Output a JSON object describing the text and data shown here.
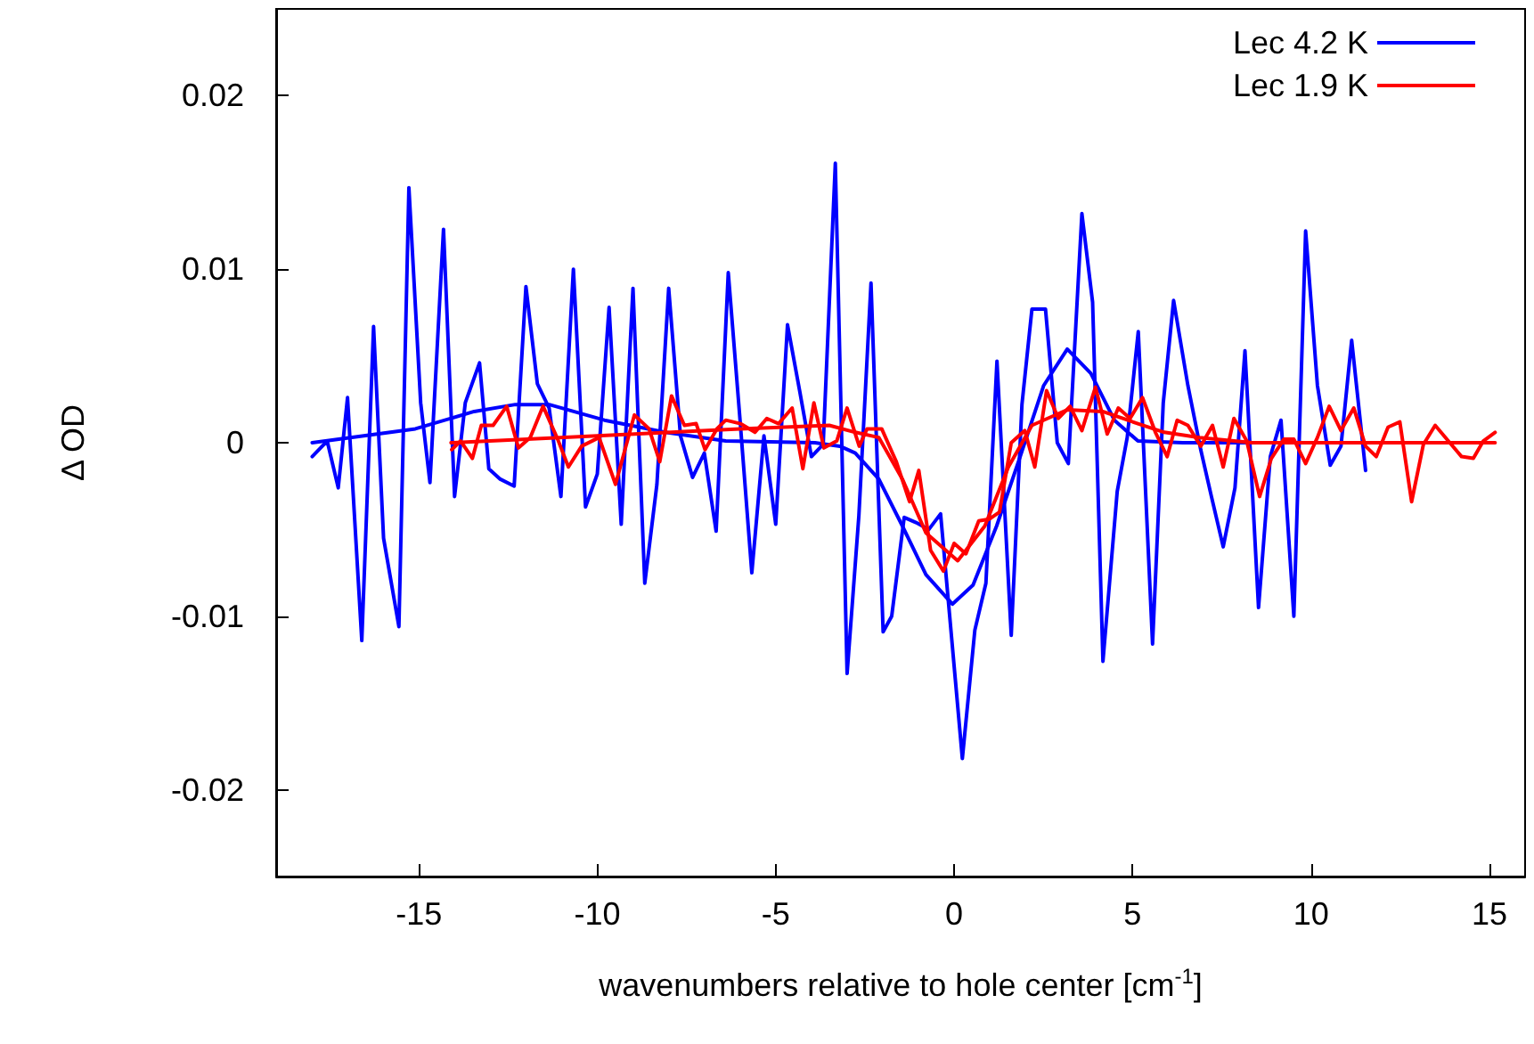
{
  "chart_data": {
    "type": "line",
    "xlabel": "wavenumbers relative to hole center [cm$^{-1}$]",
    "ylabel": "Δ OD",
    "xlim": [
      -19,
      16
    ],
    "ylim": [
      -0.025,
      0.025
    ],
    "xticks": [
      -15,
      -10,
      -5,
      0,
      5,
      10,
      15
    ],
    "yticks": [
      -0.02,
      -0.01,
      0,
      0.01,
      0.02
    ],
    "legend": "top right",
    "grid": false,
    "marker": "none",
    "line_style": "solid",
    "series": [
      {
        "name": "Lec 4.2 K",
        "color": "#0000ff",
        "x": [
          -17.99,
          -17.57,
          -17.26,
          -17.0,
          -16.6,
          -16.27,
          -15.99,
          -15.56,
          -15.28,
          -14.95,
          -14.69,
          -14.31,
          -14.0,
          -13.7,
          -13.3,
          -13.04,
          -12.72,
          -12.33,
          -12.0,
          -11.68,
          -11.35,
          -11.02,
          -10.67,
          -10.33,
          -10.0,
          -9.67,
          -9.33,
          -9.0,
          -8.67,
          -8.33,
          -8.0,
          -7.67,
          -7.33,
          -7.0,
          -6.67,
          -6.33,
          -6.0,
          -5.67,
          -5.33,
          -5.0,
          -4.67,
          -4.33,
          -4.0,
          -3.67,
          -3.33,
          -3.0,
          -2.67,
          -2.33,
          -1.99,
          -1.75,
          -1.4,
          -1.07,
          -0.71,
          -0.38,
          0.23,
          0.58,
          0.89,
          1.2,
          1.6,
          1.9,
          2.18,
          2.56,
          2.89,
          3.2,
          3.58,
          3.88,
          4.17,
          4.57,
          4.85,
          5.16,
          5.56,
          5.86,
          6.15,
          6.55,
          6.91,
          7.21,
          7.54,
          7.87,
          8.15,
          8.53,
          8.86,
          9.16,
          9.52,
          9.85,
          10.18,
          10.54,
          10.84,
          11.14,
          11.53
        ],
        "values": [
          -0.0008,
          0.0001,
          -0.0026,
          0.0026,
          -0.0114,
          0.0067,
          -0.0055,
          -0.0106,
          0.0147,
          0.0023,
          -0.0023,
          0.0123,
          -0.0031,
          0.0023,
          0.0046,
          -0.0015,
          -0.0021,
          -0.0025,
          0.009,
          0.0034,
          0.002,
          -0.0031,
          0.01,
          -0.0037,
          -0.0018,
          0.0078,
          -0.0047,
          0.0089,
          -0.0081,
          -0.0024,
          0.0089,
          0.0004,
          -0.002,
          -0.0006,
          -0.0051,
          0.0098,
          0.0013,
          -0.0075,
          0.0004,
          -0.0047,
          0.0068,
          0.003,
          -0.0008,
          -0.0001,
          0.0161,
          -0.0133,
          -0.0042,
          0.0092,
          -0.0109,
          -0.01,
          -0.0043,
          -0.0046,
          -0.005,
          -0.0041,
          -0.0182,
          -0.0108,
          -0.0081,
          0.0047,
          -0.0111,
          0.0022,
          0.0077,
          0.0077,
          0.0,
          -0.0012,
          0.0132,
          0.0081,
          -0.0126,
          -0.0028,
          0.0003,
          0.0064,
          -0.0116,
          0.0023,
          0.0082,
          0.0033,
          -0.0004,
          -0.0031,
          -0.006,
          -0.0026,
          0.0053,
          -0.0095,
          -0.0008,
          0.0013,
          -0.01,
          0.0122,
          0.0033,
          -0.0013,
          -0.0002,
          0.0059,
          -0.0016
        ]
      },
      {
        "color": "#0000ff",
        "x": [
          -17.99,
          -15.1,
          -13.45,
          -12.3,
          -11.35,
          -9.8,
          -8.1,
          -6.4,
          -3.9,
          -3.2,
          -2.77,
          -2.11,
          -1.45,
          -0.79,
          -0.05,
          0.53,
          1.19,
          1.85,
          2.51,
          3.17,
          3.83,
          4.49,
          5.15,
          6.4,
          11.5
        ],
        "values": [
          0.0,
          0.0008,
          0.0018,
          0.0022,
          0.0022,
          0.0013,
          0.0006,
          0.0001,
          0.0,
          -0.0002,
          -0.0006,
          -0.0021,
          -0.0048,
          -0.0076,
          -0.0093,
          -0.0082,
          -0.0048,
          -0.0008,
          0.0033,
          0.0054,
          0.004,
          0.0013,
          0.0001,
          0.0,
          0.0
        ]
      },
      {
        "name": "Lec 1.9 K",
        "color": "#ff0000",
        "x": [
          -14.08,
          -13.83,
          -13.5,
          -13.25,
          -12.92,
          -12.54,
          -12.21,
          -11.88,
          -11.52,
          -11.11,
          -10.81,
          -10.44,
          -9.95,
          -9.49,
          -8.96,
          -8.55,
          -8.25,
          -7.92,
          -7.56,
          -7.23,
          -6.98,
          -6.65,
          -6.4,
          -5.99,
          -5.58,
          -5.25,
          -4.92,
          -4.54,
          -4.24,
          -3.93,
          -3.65,
          -3.29,
          -3.0,
          -2.66,
          -2.44,
          -2.03,
          -1.62,
          -1.25,
          -0.99,
          -0.66,
          -0.3,
          0.0,
          0.33,
          0.69,
          0.99,
          1.27,
          1.6,
          1.98,
          2.26,
          2.59,
          2.92,
          3.25,
          3.58,
          3.96,
          4.29,
          4.6,
          4.93,
          5.28,
          5.64,
          5.97,
          6.25,
          6.55,
          6.91,
          7.24,
          7.54,
          7.84,
          8.2,
          8.56,
          8.89,
          9.24,
          9.52,
          9.85,
          10.18,
          10.51,
          10.84,
          11.2,
          11.53,
          11.83,
          12.16,
          12.49,
          12.82,
          13.15,
          13.48,
          13.89,
          14.22,
          14.55,
          14.83,
          15.16
        ],
        "values": [
          -0.0004,
          0.0001,
          -0.0009,
          0.001,
          0.001,
          0.0021,
          -0.0003,
          0.0003,
          0.0021,
          0.0002,
          -0.0014,
          -0.0002,
          0.0003,
          -0.0024,
          0.0016,
          0.0008,
          -0.0011,
          0.0027,
          0.001,
          0.0011,
          -0.0004,
          0.0008,
          0.0013,
          0.0011,
          0.0006,
          0.0014,
          0.0011,
          0.002,
          -0.0015,
          0.0023,
          -0.0003,
          0.0001,
          0.002,
          -0.0002,
          0.0008,
          0.0008,
          -0.0011,
          -0.0034,
          -0.0016,
          -0.0062,
          -0.0074,
          -0.0058,
          -0.0064,
          -0.0045,
          -0.0044,
          -0.004,
          0.0,
          0.0007,
          -0.0014,
          0.003,
          0.0014,
          0.0021,
          0.0007,
          0.0032,
          0.0005,
          0.002,
          0.0014,
          0.0026,
          0.0006,
          -0.0008,
          0.0013,
          0.001,
          -0.0002,
          0.001,
          -0.0014,
          0.0014,
          0.0001,
          -0.0031,
          -0.0009,
          0.0002,
          0.0002,
          -0.0012,
          0.0003,
          0.0021,
          0.0007,
          0.002,
          -0.0002,
          -0.0008,
          0.0009,
          0.0012,
          -0.0034,
          -0.0001,
          0.001,
          0.0,
          -0.0008,
          -0.0009,
          0.0001,
          0.0006
        ]
      },
      {
        "color": "#ff0000",
        "x": [
          -14.1,
          -10,
          -6,
          -3.5,
          -2.77,
          -2.11,
          -1.45,
          -0.79,
          0.1,
          0.86,
          1.52,
          2.18,
          3.17,
          4.16,
          5.15,
          5.89,
          6.88,
          8.36,
          15.16
        ],
        "values": [
          0.0,
          0.0004,
          0.0008,
          0.001,
          0.0006,
          0.0003,
          -0.0021,
          -0.0052,
          -0.0068,
          -0.0048,
          -0.0014,
          0.001,
          0.0019,
          0.0018,
          0.0011,
          0.0006,
          0.0003,
          0.0,
          0.0
        ]
      }
    ]
  }
}
